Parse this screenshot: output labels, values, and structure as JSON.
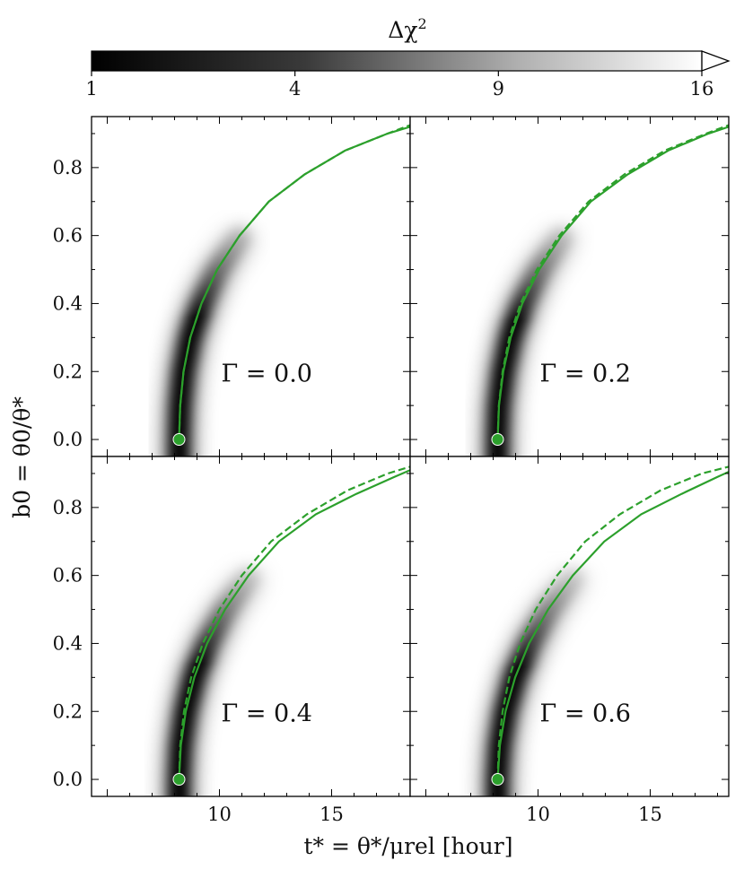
{
  "chart_data": {
    "type": "line",
    "layout": "2x2 panels with shared axes and a grayscale colorbar on top",
    "colorbar": {
      "label": "Δχ²",
      "label_text": "Δχ",
      "label_sup": "2",
      "ticks": [
        1,
        4,
        9,
        16
      ],
      "tick_labels": [
        "1",
        "4",
        "9",
        "16"
      ],
      "range": [
        1,
        16
      ],
      "colormap": "gray (black → white)",
      "extend": "max"
    },
    "xlabel": "t* = θ*/μrel [hour]",
    "ylabel": "b0 = θ0/θ*",
    "xlim": [
      4.3,
      18.5
    ],
    "ylim": [
      -0.05,
      0.95
    ],
    "xticks": [
      10,
      15
    ],
    "yticks": [
      0.0,
      0.2,
      0.4,
      0.6,
      0.8
    ],
    "ytick_labels": [
      "0.0",
      "0.2",
      "0.4",
      "0.6",
      "0.8"
    ],
    "line_color": "#2ca02c",
    "panels": [
      {
        "label": "Γ = 0.0",
        "gamma": 0.0,
        "marker": {
          "x": 8.2,
          "y": 0.0
        },
        "series": [
          {
            "style": "solid",
            "x": [
              8.2,
              8.25,
              8.4,
              8.7,
              9.2,
              9.9,
              10.9,
              12.2,
              13.8,
              15.6,
              17.5,
              18.5
            ],
            "y": [
              0.0,
              0.1,
              0.2,
              0.3,
              0.4,
              0.5,
              0.6,
              0.7,
              0.78,
              0.85,
              0.9,
              0.92
            ]
          },
          {
            "style": "dashed",
            "x": [
              8.2,
              8.25,
              8.4,
              8.7,
              9.2,
              9.9,
              10.9,
              12.2,
              13.8,
              15.6,
              17.5,
              18.5
            ],
            "y": [
              0.0,
              0.1,
              0.2,
              0.3,
              0.4,
              0.5,
              0.6,
              0.7,
              0.78,
              0.85,
              0.9,
              0.925
            ]
          }
        ]
      },
      {
        "label": "Γ = 0.2",
        "gamma": 0.2,
        "marker": {
          "x": 8.2,
          "y": 0.0
        },
        "series": [
          {
            "style": "solid",
            "x": [
              8.2,
              8.26,
              8.45,
              8.78,
              9.3,
              10.05,
              11.05,
              12.35,
              14.0,
              15.8,
              17.6,
              18.5
            ],
            "y": [
              0.0,
              0.1,
              0.2,
              0.3,
              0.4,
              0.5,
              0.6,
              0.7,
              0.78,
              0.85,
              0.9,
              0.92
            ]
          },
          {
            "style": "dashed",
            "x": [
              8.2,
              8.25,
              8.42,
              8.72,
              9.22,
              9.95,
              10.95,
              12.25,
              13.85,
              15.65,
              17.5,
              18.5
            ],
            "y": [
              0.0,
              0.1,
              0.2,
              0.3,
              0.4,
              0.5,
              0.6,
              0.7,
              0.78,
              0.85,
              0.9,
              0.925
            ]
          }
        ]
      },
      {
        "label": "Γ = 0.4",
        "gamma": 0.4,
        "marker": {
          "x": 8.2,
          "y": 0.0
        },
        "series": [
          {
            "style": "solid",
            "x": [
              8.2,
              8.28,
              8.5,
              8.88,
              9.45,
              10.25,
              11.3,
              12.65,
              14.3,
              16.1,
              17.8,
              18.5
            ],
            "y": [
              0.0,
              0.1,
              0.2,
              0.3,
              0.4,
              0.5,
              0.6,
              0.7,
              0.78,
              0.84,
              0.89,
              0.91
            ]
          },
          {
            "style": "dashed",
            "x": [
              8.2,
              8.25,
              8.42,
              8.74,
              9.26,
              10.0,
              11.0,
              12.3,
              13.9,
              15.7,
              17.5,
              18.5
            ],
            "y": [
              0.0,
              0.1,
              0.2,
              0.3,
              0.4,
              0.5,
              0.6,
              0.7,
              0.78,
              0.85,
              0.9,
              0.92
            ]
          }
        ]
      },
      {
        "label": "Γ = 0.6",
        "gamma": 0.6,
        "marker": {
          "x": 8.2,
          "y": 0.0
        },
        "series": [
          {
            "style": "solid",
            "x": [
              8.2,
              8.3,
              8.55,
              8.98,
              9.6,
              10.45,
              11.55,
              12.95,
              14.6,
              16.4,
              18.0,
              18.5
            ],
            "y": [
              0.0,
              0.1,
              0.2,
              0.3,
              0.4,
              0.5,
              0.6,
              0.7,
              0.78,
              0.84,
              0.89,
              0.905
            ]
          },
          {
            "style": "dashed",
            "x": [
              8.2,
              8.25,
              8.42,
              8.72,
              9.2,
              9.9,
              10.85,
              12.1,
              13.65,
              15.45,
              17.3,
              18.5
            ],
            "y": [
              0.0,
              0.1,
              0.2,
              0.3,
              0.4,
              0.5,
              0.6,
              0.7,
              0.78,
              0.85,
              0.9,
              0.92
            ]
          }
        ]
      }
    ]
  }
}
